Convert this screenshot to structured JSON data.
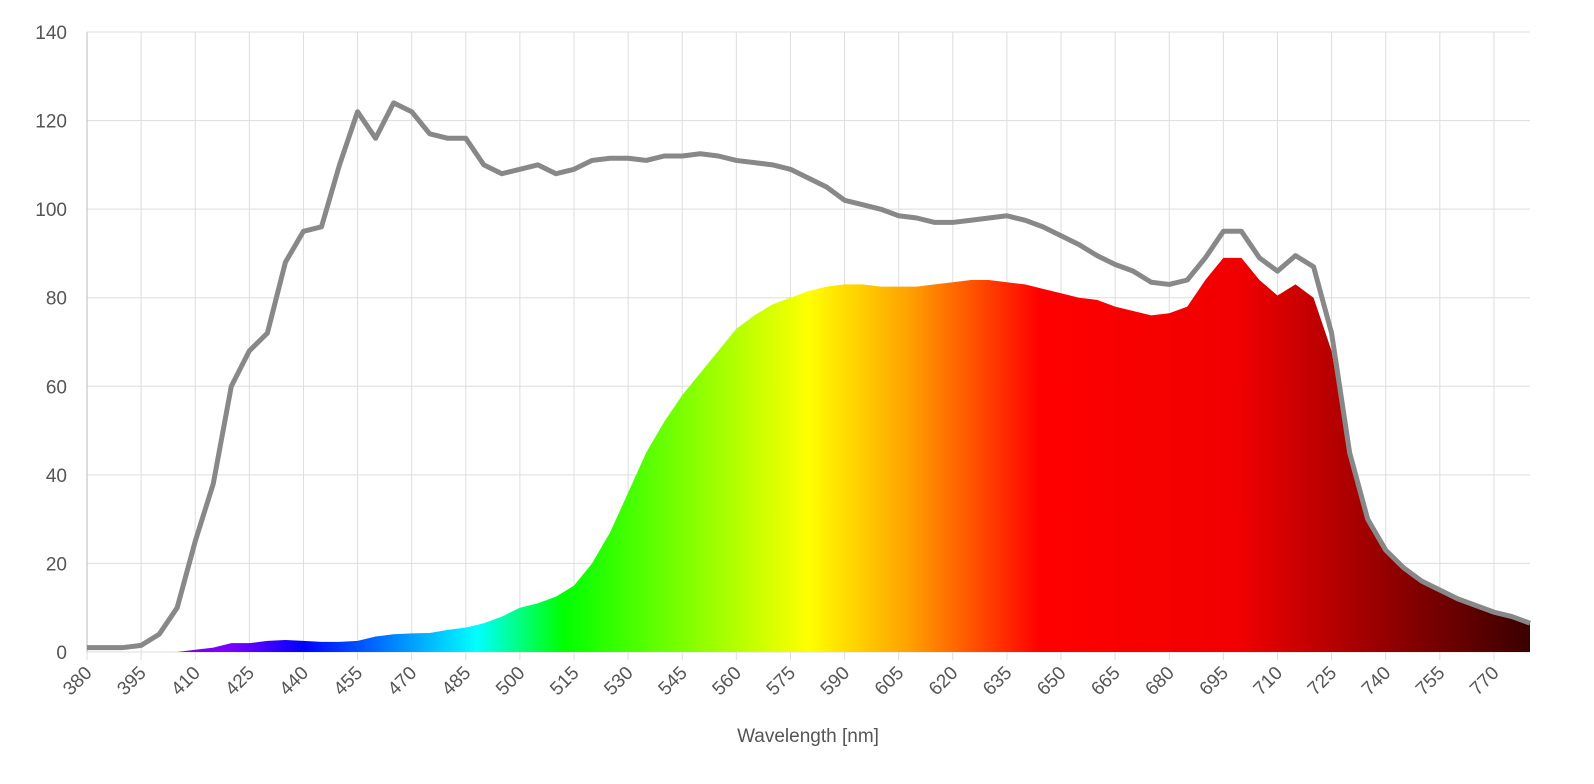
{
  "chart_data": {
    "type": "line",
    "x_label": "Wavelength [nm]",
    "x": [
      380,
      385,
      390,
      395,
      400,
      405,
      410,
      415,
      420,
      425,
      430,
      435,
      440,
      445,
      450,
      455,
      460,
      465,
      470,
      475,
      480,
      485,
      490,
      495,
      500,
      505,
      510,
      515,
      520,
      525,
      530,
      535,
      540,
      545,
      550,
      555,
      560,
      565,
      570,
      575,
      580,
      585,
      590,
      595,
      600,
      605,
      610,
      615,
      620,
      625,
      630,
      635,
      640,
      645,
      650,
      655,
      660,
      665,
      670,
      675,
      680,
      685,
      690,
      695,
      700,
      705,
      710,
      715,
      720,
      725,
      730,
      735,
      740,
      745,
      750,
      755,
      760,
      765,
      770,
      775,
      780
    ],
    "series": [
      {
        "kind": "area",
        "values": [
          0,
          0,
          0,
          0,
          0,
          0,
          0.5,
          1,
          2,
          2,
          2.5,
          2.7,
          2.5,
          2.3,
          2.3,
          2.5,
          3.5,
          4,
          4.2,
          4.3,
          5,
          5.5,
          6.5,
          8,
          10,
          11,
          12.5,
          15,
          20,
          27,
          36,
          45,
          52,
          58,
          63,
          68,
          73,
          76,
          78.5,
          80,
          81.5,
          82.5,
          83,
          83,
          82.5,
          82.5,
          82.5,
          83,
          83.5,
          84,
          84,
          83.5,
          83,
          82,
          81,
          80,
          79.5,
          78,
          77,
          76,
          76.5,
          78,
          84,
          89,
          89,
          84,
          80.5,
          83,
          80,
          68,
          44,
          30,
          23,
          19,
          16,
          14,
          12,
          10.5,
          9,
          8,
          6.5
        ]
      },
      {
        "kind": "line",
        "color": "#888888",
        "values": [
          1,
          1,
          1,
          1.5,
          4,
          10,
          25,
          38,
          60,
          68,
          72,
          88,
          95,
          96,
          110,
          122,
          116,
          124,
          122,
          117,
          116,
          116,
          110,
          108,
          109,
          110,
          108,
          109,
          111,
          111.5,
          111.5,
          111,
          112,
          112,
          112.5,
          112,
          111,
          110.5,
          110,
          109,
          107,
          105,
          102,
          101,
          100,
          98.5,
          98,
          97,
          97,
          97.5,
          98,
          98.5,
          97.5,
          96,
          94,
          92,
          89.5,
          87.5,
          86,
          83.5,
          83,
          84,
          89,
          95,
          95,
          89,
          86,
          89.5,
          87,
          72,
          45,
          30,
          23,
          19,
          16,
          14,
          12,
          10.5,
          9,
          8,
          6.5
        ]
      }
    ],
    "xlim": [
      380,
      780
    ],
    "xticks": [
      380,
      395,
      410,
      425,
      440,
      455,
      470,
      485,
      500,
      515,
      530,
      545,
      560,
      575,
      590,
      605,
      620,
      635,
      650,
      665,
      680,
      695,
      710,
      725,
      740,
      755,
      770
    ],
    "ylim": [
      0,
      140
    ],
    "yticks": [
      0,
      20,
      40,
      60,
      80,
      100,
      120,
      140
    ],
    "grid": true
  }
}
